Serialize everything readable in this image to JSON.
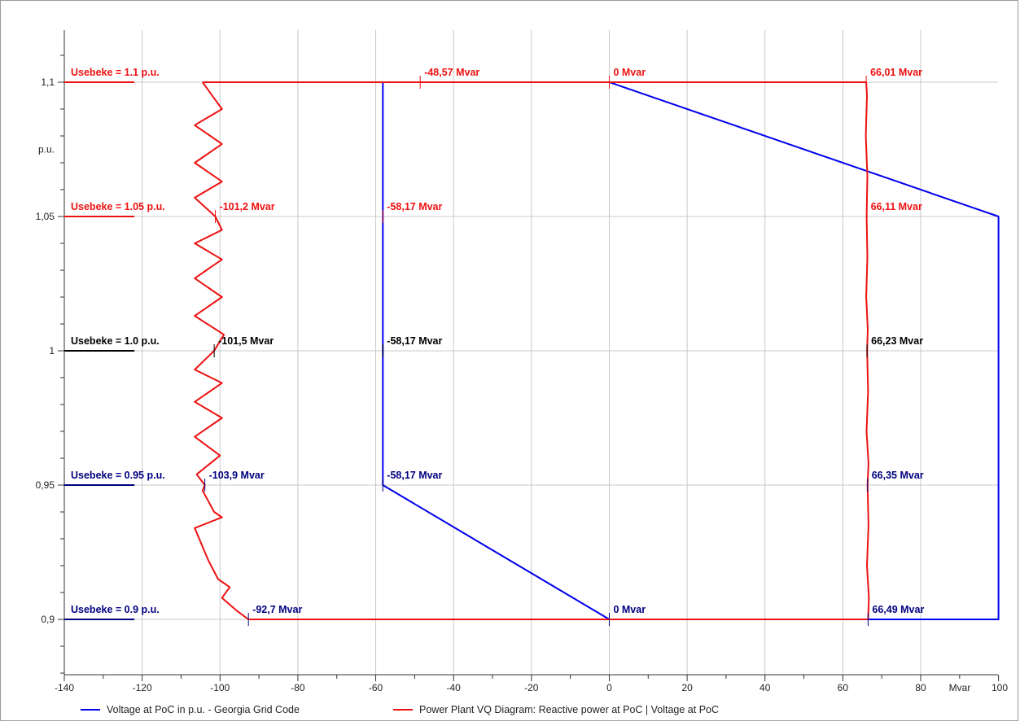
{
  "chart_data": {
    "type": "line",
    "x_unit_label": "Mvar",
    "y_unit_label": "p.u.",
    "xlim": [
      -140,
      100
    ],
    "ylim": [
      0.88,
      1.12
    ],
    "x_ticks": [
      -140,
      -120,
      -100,
      -80,
      -60,
      -40,
      -20,
      0,
      20,
      40,
      60,
      80,
      100
    ],
    "y_ticks": [
      {
        "value": 1.1,
        "label": "1,1"
      },
      {
        "value": 1.05,
        "label": "1,05"
      },
      {
        "value": 1.0,
        "label": "1"
      },
      {
        "value": 0.95,
        "label": "0,95"
      },
      {
        "value": 0.9,
        "label": "0,9"
      }
    ],
    "grid": true,
    "legend_position": "bottom",
    "series": [
      {
        "name": "Voltage at PoC in p.u. - Georgia Grid Code",
        "color": "#0000ee",
        "points": [
          [
            -58.17,
            1.1
          ],
          [
            -58.17,
            0.95
          ],
          [
            0,
            0.9
          ],
          [
            69,
            0.9
          ],
          [
            70.5,
            0.9
          ],
          [
            100,
            0.9
          ],
          [
            100,
            1.05
          ],
          [
            0,
            1.1
          ],
          [
            -58.17,
            1.1
          ]
        ]
      },
      {
        "name": "Power Plant VQ Diagram: Reactive power at PoC  |  Voltage at PoC",
        "color": "#ee1111",
        "points": [
          [
            -104.5,
            1.1
          ],
          [
            -48.57,
            1.1
          ],
          [
            0,
            1.1
          ],
          [
            66.01,
            1.1
          ],
          [
            66.2,
            1.095
          ],
          [
            65.9,
            1.08
          ],
          [
            66.3,
            1.065
          ],
          [
            66.11,
            1.05
          ],
          [
            66.3,
            1.035
          ],
          [
            66.0,
            1.02
          ],
          [
            66.4,
            1.008
          ],
          [
            66.23,
            1.0
          ],
          [
            66.5,
            0.985
          ],
          [
            66.1,
            0.97
          ],
          [
            66.6,
            0.958
          ],
          [
            66.35,
            0.95
          ],
          [
            66.6,
            0.935
          ],
          [
            66.2,
            0.92
          ],
          [
            66.7,
            0.908
          ],
          [
            66.49,
            0.9
          ],
          [
            0,
            0.9
          ],
          [
            -92.7,
            0.9
          ],
          [
            -95.5,
            0.903
          ],
          [
            -99.5,
            0.908
          ],
          [
            -97.5,
            0.912
          ],
          [
            -100.5,
            0.915
          ],
          [
            -103.0,
            0.922
          ],
          [
            -106.5,
            0.934
          ],
          [
            -99.5,
            0.938
          ],
          [
            -101.5,
            0.94
          ],
          [
            -104.5,
            0.948
          ],
          [
            -103.9,
            0.95
          ],
          [
            -106,
            0.954
          ],
          [
            -100,
            0.961
          ],
          [
            -106.5,
            0.968
          ],
          [
            -99.5,
            0.975
          ],
          [
            -106.5,
            0.981
          ],
          [
            -99.5,
            0.988
          ],
          [
            -106.5,
            0.993
          ],
          [
            -101.5,
            1.0
          ],
          [
            -99,
            1.006
          ],
          [
            -106.5,
            1.013
          ],
          [
            -99.5,
            1.02
          ],
          [
            -106.5,
            1.027
          ],
          [
            -99.5,
            1.034
          ],
          [
            -106.5,
            1.04
          ],
          [
            -99.5,
            1.045
          ],
          [
            -101.2,
            1.05
          ],
          [
            -106.5,
            1.057
          ],
          [
            -99.5,
            1.063
          ],
          [
            -106.5,
            1.07
          ],
          [
            -99.5,
            1.077
          ],
          [
            -106.5,
            1.084
          ],
          [
            -99.5,
            1.09
          ],
          [
            -104.5,
            1.1
          ]
        ]
      }
    ],
    "row_labels": [
      {
        "text": "Usebeke = 1.1 p.u.",
        "y": 1.1,
        "color": "#ee1111"
      },
      {
        "text": "Usebeke = 1.05 p.u.",
        "y": 1.05,
        "color": "#ee1111"
      },
      {
        "text": "Usebeke = 1.0 p.u.",
        "y": 1.0,
        "color": "#000000"
      },
      {
        "text": "Usebeke = 0.95 p.u.",
        "y": 0.95,
        "color": "#000080"
      },
      {
        "text": "Usebeke = 0.9 p.u.",
        "y": 0.9,
        "color": "#000080"
      }
    ],
    "annotations": [
      {
        "text": "-48,57 Mvar",
        "x": -48.57,
        "y": 1.1,
        "color": "#ee1111"
      },
      {
        "text": "0 Mvar",
        "x": 0,
        "y": 1.1,
        "color": "#ee1111"
      },
      {
        "text": "66,01 Mvar",
        "x": 66.01,
        "y": 1.1,
        "color": "#ee1111"
      },
      {
        "text": "-101,2 Mvar",
        "x": -101.2,
        "y": 1.05,
        "color": "#ee1111"
      },
      {
        "text": "-58,17 Mvar",
        "x": -58.17,
        "y": 1.05,
        "color": "#ee1111"
      },
      {
        "text": "66,11 Mvar",
        "x": 66.11,
        "y": 1.05,
        "color": "#ee1111"
      },
      {
        "text": "-101,5 Mvar",
        "x": -101.5,
        "y": 1.0,
        "color": "#000000"
      },
      {
        "text": "-58,17 Mvar",
        "x": -58.17,
        "y": 1.0,
        "color": "#000000"
      },
      {
        "text": "66,23 Mvar",
        "x": 66.23,
        "y": 1.0,
        "color": "#000000"
      },
      {
        "text": "-103,9 Mvar",
        "x": -103.9,
        "y": 0.95,
        "color": "#000080"
      },
      {
        "text": "-58,17 Mvar",
        "x": -58.17,
        "y": 0.95,
        "color": "#000080"
      },
      {
        "text": "66,35 Mvar",
        "x": 66.35,
        "y": 0.95,
        "color": "#000080"
      },
      {
        "text": "-92,7 Mvar",
        "x": -92.7,
        "y": 0.9,
        "color": "#000080"
      },
      {
        "text": "0 Mvar",
        "x": 0,
        "y": 0.9,
        "color": "#000080"
      },
      {
        "text": "66,49 Mvar",
        "x": 66.49,
        "y": 0.9,
        "color": "#000080"
      }
    ]
  }
}
